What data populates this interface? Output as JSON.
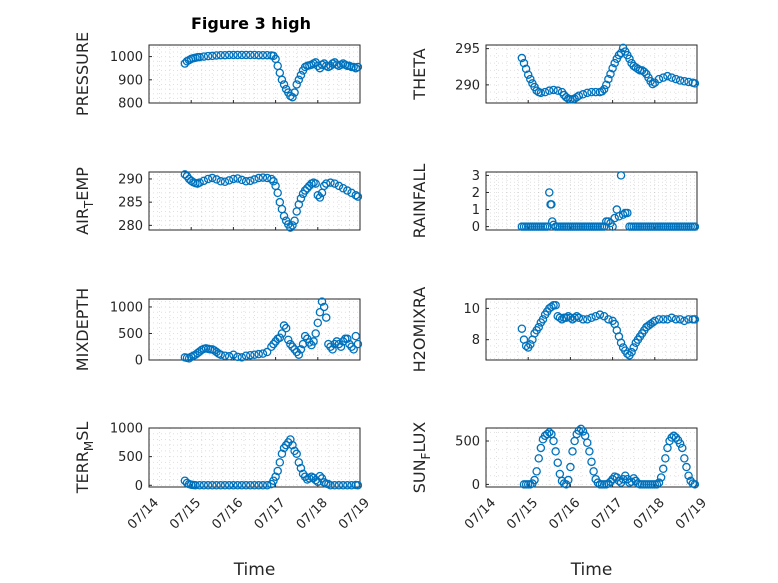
{
  "figure": {
    "title": "Figure 3 high"
  },
  "colors": {
    "marker": "#0072bd",
    "axis": "#262626",
    "background": "#ffffff"
  },
  "chart_data": [
    {
      "type": "scatter",
      "ylabel": "PRESSURE",
      "xlabel": "",
      "xlim": [
        0,
        5
      ],
      "ylim": [
        800,
        1050
      ],
      "yticks": [
        800,
        900,
        1000
      ],
      "ytick_labels": [
        "800",
        "900",
        "1000"
      ],
      "xticks": [
        0,
        1,
        2,
        3,
        4,
        5
      ],
      "xtick_labels": [],
      "x": [
        0.85,
        0.9,
        0.95,
        1.0,
        1.05,
        1.1,
        1.15,
        1.2,
        1.3,
        1.4,
        1.5,
        1.6,
        1.7,
        1.8,
        1.9,
        2.0,
        2.1,
        2.2,
        2.3,
        2.4,
        2.5,
        2.6,
        2.7,
        2.8,
        2.9,
        2.95,
        3.0,
        3.05,
        3.1,
        3.15,
        3.2,
        3.25,
        3.3,
        3.35,
        3.4,
        3.45,
        3.5,
        3.55,
        3.6,
        3.65,
        3.7,
        3.75,
        3.8,
        3.85,
        3.9,
        3.95,
        4.0,
        4.05,
        4.1,
        4.15,
        4.2,
        4.25,
        4.3,
        4.35,
        4.4,
        4.45,
        4.5,
        4.55,
        4.6,
        4.65,
        4.7,
        4.75,
        4.8,
        4.85,
        4.9,
        4.95
      ],
      "y": [
        970,
        980,
        985,
        990,
        993,
        995,
        997,
        998,
        1000,
        1002,
        1003,
        1005,
        1006,
        1006,
        1007,
        1007,
        1007,
        1007,
        1007,
        1007,
        1007,
        1006,
        1006,
        1006,
        1005,
        1003,
        990,
        960,
        930,
        900,
        880,
        860,
        845,
        830,
        825,
        845,
        880,
        900,
        920,
        940,
        955,
        960,
        962,
        965,
        970,
        975,
        960,
        950,
        965,
        970,
        960,
        955,
        960,
        970,
        975,
        965,
        960,
        965,
        970,
        965,
        960,
        960,
        955,
        955,
        950,
        955
      ]
    },
    {
      "type": "scatter",
      "ylabel": "THETA",
      "xlabel": "",
      "xlim": [
        0,
        5
      ],
      "ylim": [
        287.5,
        295.5
      ],
      "yticks": [
        290,
        295
      ],
      "ytick_labels": [
        "290",
        "295"
      ],
      "xticks": [
        0,
        1,
        2,
        3,
        4,
        5
      ],
      "xtick_labels": [],
      "x": [
        0.85,
        0.9,
        0.95,
        1.0,
        1.05,
        1.1,
        1.15,
        1.2,
        1.25,
        1.3,
        1.4,
        1.5,
        1.6,
        1.7,
        1.8,
        1.85,
        1.9,
        1.95,
        2.0,
        2.05,
        2.1,
        2.15,
        2.2,
        2.3,
        2.4,
        2.5,
        2.6,
        2.7,
        2.75,
        2.8,
        2.85,
        2.9,
        2.95,
        3.0,
        3.05,
        3.1,
        3.15,
        3.2,
        3.25,
        3.3,
        3.35,
        3.4,
        3.45,
        3.5,
        3.55,
        3.6,
        3.65,
        3.7,
        3.75,
        3.8,
        3.85,
        3.9,
        3.95,
        4.0,
        4.1,
        4.2,
        4.3,
        4.4,
        4.5,
        4.6,
        4.7,
        4.8,
        4.9,
        4.95
      ],
      "y": [
        293.7,
        293,
        292.2,
        291.4,
        290.8,
        290.2,
        289.7,
        289.2,
        289,
        288.9,
        289,
        289.2,
        289.3,
        289.2,
        289,
        288.6,
        288.3,
        288.1,
        288,
        288,
        288.1,
        288.3,
        288.5,
        288.7,
        288.9,
        289,
        289,
        289,
        289.1,
        289.4,
        290,
        290.8,
        291.5,
        292.3,
        293,
        293.6,
        294.1,
        294.4,
        295.1,
        294.6,
        294.1,
        293.6,
        293,
        292.6,
        292.4,
        292.2,
        292,
        292,
        291.8,
        291.5,
        291,
        290.5,
        290.1,
        290.3,
        290.8,
        291,
        291.2,
        291,
        290.8,
        290.6,
        290.5,
        290.4,
        290.3,
        290.2
      ]
    },
    {
      "type": "scatter",
      "ylabel": "AIR_TEMP",
      "xlabel": "",
      "xlim": [
        0,
        5
      ],
      "ylim": [
        279,
        291.5
      ],
      "yticks": [
        280,
        285,
        290
      ],
      "ytick_labels": [
        "280",
        "285",
        "290"
      ],
      "xticks": [
        0,
        1,
        2,
        3,
        4,
        5
      ],
      "xtick_labels": [],
      "x": [
        0.85,
        0.9,
        0.95,
        1.0,
        1.05,
        1.1,
        1.15,
        1.2,
        1.3,
        1.4,
        1.5,
        1.6,
        1.7,
        1.8,
        1.9,
        2.0,
        2.1,
        2.2,
        2.3,
        2.4,
        2.5,
        2.6,
        2.7,
        2.8,
        2.9,
        2.95,
        3.0,
        3.05,
        3.1,
        3.15,
        3.2,
        3.25,
        3.3,
        3.35,
        3.4,
        3.45,
        3.5,
        3.55,
        3.6,
        3.65,
        3.7,
        3.75,
        3.8,
        3.85,
        3.9,
        3.95,
        4.0,
        4.05,
        4.1,
        4.15,
        4.2,
        4.3,
        4.4,
        4.5,
        4.6,
        4.7,
        4.8,
        4.9,
        4.95
      ],
      "y": [
        291,
        290.6,
        290,
        289.6,
        289.3,
        289.1,
        289,
        289.2,
        289.6,
        290,
        290.2,
        289.9,
        289.5,
        289.4,
        289.7,
        290,
        290.1,
        289.8,
        289.5,
        289.6,
        289.9,
        290.2,
        290.3,
        290.2,
        290,
        289.5,
        288.5,
        287,
        285,
        283.5,
        282,
        281,
        280.2,
        279.5,
        280,
        281,
        283,
        284.5,
        285.8,
        286.8,
        287.5,
        288,
        288.5,
        289,
        289.2,
        289,
        286.5,
        286,
        287,
        288.5,
        289,
        289.2,
        289,
        288.5,
        288,
        287.5,
        287,
        286.5,
        286.2
      ]
    },
    {
      "type": "scatter",
      "ylabel": "RAINFALL",
      "xlabel": "",
      "xlim": [
        0,
        5
      ],
      "ylim": [
        -0.2,
        3.2
      ],
      "yticks": [
        0,
        1,
        2,
        3
      ],
      "ytick_labels": [
        "0",
        "1",
        "2",
        "3"
      ],
      "xticks": [
        0,
        1,
        2,
        3,
        4,
        5
      ],
      "xtick_labels": [],
      "x": [
        0.85,
        0.9,
        0.95,
        1.0,
        1.05,
        1.1,
        1.15,
        1.2,
        1.25,
        1.3,
        1.35,
        1.4,
        1.45,
        1.5,
        1.53,
        1.55,
        1.57,
        1.6,
        1.65,
        1.7,
        1.75,
        1.8,
        1.85,
        1.9,
        1.95,
        2.0,
        2.05,
        2.1,
        2.15,
        2.2,
        2.25,
        2.3,
        2.35,
        2.4,
        2.45,
        2.5,
        2.55,
        2.6,
        2.65,
        2.7,
        2.75,
        2.8,
        2.85,
        2.9,
        2.95,
        3.0,
        3.05,
        3.1,
        3.15,
        3.2,
        3.25,
        3.3,
        3.35,
        3.4,
        3.45,
        3.5,
        3.55,
        3.6,
        3.65,
        3.7,
        3.75,
        3.8,
        3.85,
        3.9,
        3.95,
        4.0,
        4.05,
        4.1,
        4.15,
        4.2,
        4.25,
        4.3,
        4.35,
        4.4,
        4.45,
        4.5,
        4.55,
        4.6,
        4.65,
        4.7,
        4.75,
        4.8,
        4.85,
        4.9,
        4.95
      ],
      "y": [
        0,
        0,
        0,
        0,
        0,
        0,
        0,
        0,
        0,
        0,
        0,
        0,
        0,
        2.0,
        1.3,
        1.3,
        0.3,
        0.1,
        0,
        0,
        0,
        0,
        0,
        0,
        0,
        0,
        0,
        0,
        0,
        0,
        0,
        0,
        0,
        0,
        0,
        0,
        0,
        0,
        0,
        0,
        0,
        0,
        0.3,
        0.3,
        0.2,
        0,
        0.5,
        1.0,
        0.6,
        3.0,
        0.7,
        0.8,
        0.8,
        0,
        0,
        0,
        0,
        0,
        0,
        0,
        0,
        0,
        0,
        0,
        0,
        0,
        0,
        0,
        0,
        0,
        0,
        0,
        0,
        0,
        0,
        0,
        0,
        0,
        0,
        0,
        0,
        0,
        0,
        0,
        0
      ]
    },
    {
      "type": "scatter",
      "ylabel": "MIXDEPTH",
      "xlabel": "",
      "xlim": [
        0,
        5
      ],
      "ylim": [
        0,
        1150
      ],
      "yticks": [
        0,
        500,
        1000
      ],
      "ytick_labels": [
        "0",
        "500",
        "1000"
      ],
      "xticks": [
        0,
        1,
        2,
        3,
        4,
        5
      ],
      "xtick_labels": [],
      "x": [
        0.85,
        0.9,
        0.95,
        1.0,
        1.05,
        1.1,
        1.15,
        1.2,
        1.25,
        1.3,
        1.35,
        1.4,
        1.45,
        1.5,
        1.55,
        1.6,
        1.65,
        1.7,
        1.8,
        1.9,
        2.0,
        2.1,
        2.2,
        2.3,
        2.4,
        2.5,
        2.6,
        2.7,
        2.8,
        2.9,
        2.95,
        3.0,
        3.05,
        3.1,
        3.15,
        3.2,
        3.25,
        3.3,
        3.35,
        3.4,
        3.45,
        3.5,
        3.55,
        3.6,
        3.65,
        3.7,
        3.75,
        3.8,
        3.85,
        3.9,
        3.95,
        4.0,
        4.05,
        4.1,
        4.15,
        4.2,
        4.25,
        4.3,
        4.35,
        4.4,
        4.45,
        4.5,
        4.55,
        4.6,
        4.65,
        4.7,
        4.75,
        4.8,
        4.85,
        4.9,
        4.95
      ],
      "y": [
        50,
        40,
        30,
        60,
        80,
        100,
        130,
        160,
        190,
        210,
        220,
        210,
        200,
        200,
        180,
        150,
        120,
        100,
        80,
        70,
        100,
        60,
        50,
        80,
        90,
        100,
        110,
        120,
        150,
        250,
        300,
        350,
        400,
        420,
        500,
        650,
        600,
        380,
        300,
        250,
        200,
        150,
        100,
        200,
        300,
        450,
        400,
        330,
        280,
        350,
        500,
        700,
        900,
        1100,
        1000,
        800,
        300,
        250,
        200,
        300,
        350,
        300,
        250,
        350,
        400,
        400,
        300,
        250,
        200,
        450,
        300
      ]
    },
    {
      "type": "scatter",
      "ylabel": "H2OMIXRA",
      "xlabel": "",
      "xlim": [
        0,
        5
      ],
      "ylim": [
        6.7,
        10.6
      ],
      "yticks": [
        8,
        10
      ],
      "ytick_labels": [
        "8",
        "10"
      ],
      "xticks": [
        0,
        1,
        2,
        3,
        4,
        5
      ],
      "xtick_labels": [],
      "x": [
        0.85,
        0.9,
        0.95,
        1.0,
        1.05,
        1.1,
        1.15,
        1.2,
        1.25,
        1.3,
        1.35,
        1.4,
        1.45,
        1.5,
        1.55,
        1.6,
        1.65,
        1.7,
        1.75,
        1.8,
        1.85,
        1.9,
        1.95,
        2.0,
        2.05,
        2.1,
        2.15,
        2.2,
        2.3,
        2.4,
        2.5,
        2.6,
        2.7,
        2.8,
        2.9,
        3.0,
        3.05,
        3.1,
        3.15,
        3.2,
        3.25,
        3.3,
        3.35,
        3.4,
        3.45,
        3.5,
        3.55,
        3.6,
        3.65,
        3.7,
        3.75,
        3.8,
        3.85,
        3.9,
        3.95,
        4.0,
        4.1,
        4.2,
        4.3,
        4.4,
        4.5,
        4.6,
        4.7,
        4.8,
        4.9,
        4.95
      ],
      "y": [
        8.7,
        8.0,
        7.6,
        7.5,
        7.7,
        8.0,
        8.4,
        8.6,
        8.8,
        9.1,
        9.3,
        9.6,
        9.8,
        10.0,
        10.1,
        10.2,
        10.2,
        9.5,
        9.4,
        9.3,
        9.4,
        9.4,
        9.5,
        9.4,
        9.3,
        9.4,
        9.5,
        9.4,
        9.3,
        9.3,
        9.4,
        9.5,
        9.6,
        9.5,
        9.3,
        9.2,
        9.0,
        8.6,
        8.2,
        7.8,
        7.5,
        7.3,
        7.1,
        7.0,
        7.2,
        7.5,
        7.8,
        8.0,
        8.2,
        8.4,
        8.6,
        8.8,
        8.9,
        9.0,
        9.1,
        9.2,
        9.3,
        9.3,
        9.3,
        9.4,
        9.3,
        9.3,
        9.2,
        9.3,
        9.3,
        9.3
      ]
    },
    {
      "type": "scatter",
      "ylabel": "TERR_MSL",
      "xlabel": "Time",
      "xlim": [
        0,
        5
      ],
      "ylim": [
        -30,
        1000
      ],
      "yticks": [
        0,
        500,
        1000
      ],
      "ytick_labels": [
        "0",
        "500",
        "1000"
      ],
      "xticks": [
        0,
        1,
        2,
        3,
        4,
        5
      ],
      "xtick_labels": [
        "07/14",
        "07/15",
        "07/16",
        "07/17",
        "07/18",
        "07/19"
      ],
      "x": [
        0.85,
        0.9,
        0.95,
        1.0,
        1.05,
        1.1,
        1.2,
        1.3,
        1.4,
        1.5,
        1.6,
        1.7,
        1.8,
        1.9,
        2.0,
        2.1,
        2.2,
        2.3,
        2.4,
        2.5,
        2.6,
        2.7,
        2.8,
        2.9,
        2.95,
        3.0,
        3.05,
        3.1,
        3.15,
        3.2,
        3.25,
        3.3,
        3.35,
        3.4,
        3.45,
        3.5,
        3.55,
        3.6,
        3.65,
        3.7,
        3.75,
        3.8,
        3.85,
        3.9,
        3.95,
        4.0,
        4.05,
        4.1,
        4.15,
        4.2,
        4.25,
        4.3,
        4.4,
        4.5,
        4.6,
        4.7,
        4.8,
        4.9,
        4.95
      ],
      "y": [
        80,
        40,
        20,
        10,
        5,
        0,
        0,
        0,
        0,
        0,
        0,
        0,
        0,
        0,
        0,
        0,
        0,
        0,
        0,
        0,
        0,
        0,
        0,
        20,
        80,
        150,
        250,
        400,
        550,
        650,
        700,
        750,
        800,
        700,
        600,
        550,
        400,
        300,
        200,
        150,
        100,
        120,
        150,
        130,
        90,
        60,
        160,
        120,
        50,
        30,
        20,
        0,
        0,
        0,
        0,
        0,
        0,
        5,
        0
      ]
    },
    {
      "type": "scatter",
      "ylabel": "SUN_FLUX",
      "xlabel": "Time",
      "xlim": [
        0,
        5
      ],
      "ylim": [
        -30,
        650
      ],
      "yticks": [
        0,
        500
      ],
      "ytick_labels": [
        "0",
        "500"
      ],
      "xticks": [
        0,
        1,
        2,
        3,
        4,
        5
      ],
      "xtick_labels": [
        "07/14",
        "07/15",
        "07/16",
        "07/17",
        "07/18",
        "07/19"
      ],
      "x": [
        0.9,
        0.95,
        1.0,
        1.05,
        1.1,
        1.15,
        1.2,
        1.25,
        1.3,
        1.35,
        1.4,
        1.45,
        1.5,
        1.55,
        1.6,
        1.65,
        1.7,
        1.75,
        1.8,
        1.85,
        1.9,
        1.95,
        2.0,
        2.05,
        2.1,
        2.15,
        2.2,
        2.25,
        2.3,
        2.35,
        2.4,
        2.45,
        2.5,
        2.55,
        2.6,
        2.65,
        2.7,
        2.75,
        2.8,
        2.85,
        2.9,
        2.95,
        3.0,
        3.05,
        3.1,
        3.15,
        3.2,
        3.25,
        3.3,
        3.35,
        3.4,
        3.45,
        3.5,
        3.55,
        3.6,
        3.65,
        3.7,
        3.75,
        3.8,
        3.85,
        3.9,
        3.95,
        4.0,
        4.05,
        4.1,
        4.15,
        4.2,
        4.25,
        4.3,
        4.35,
        4.4,
        4.45,
        4.5,
        4.55,
        4.6,
        4.65,
        4.7,
        4.75,
        4.8,
        4.85,
        4.9,
        4.95
      ],
      "y": [
        0,
        0,
        0,
        0,
        10,
        50,
        150,
        300,
        420,
        520,
        560,
        580,
        600,
        580,
        500,
        380,
        250,
        120,
        40,
        10,
        0,
        50,
        200,
        380,
        500,
        580,
        620,
        640,
        610,
        560,
        480,
        380,
        260,
        150,
        60,
        20,
        0,
        0,
        0,
        0,
        10,
        30,
        60,
        90,
        80,
        40,
        20,
        60,
        100,
        60,
        20,
        30,
        70,
        40,
        10,
        0,
        0,
        0,
        0,
        0,
        0,
        0,
        0,
        0,
        20,
        80,
        180,
        300,
        420,
        500,
        540,
        560,
        540,
        510,
        470,
        420,
        300,
        200,
        100,
        40,
        10,
        0
      ]
    }
  ]
}
